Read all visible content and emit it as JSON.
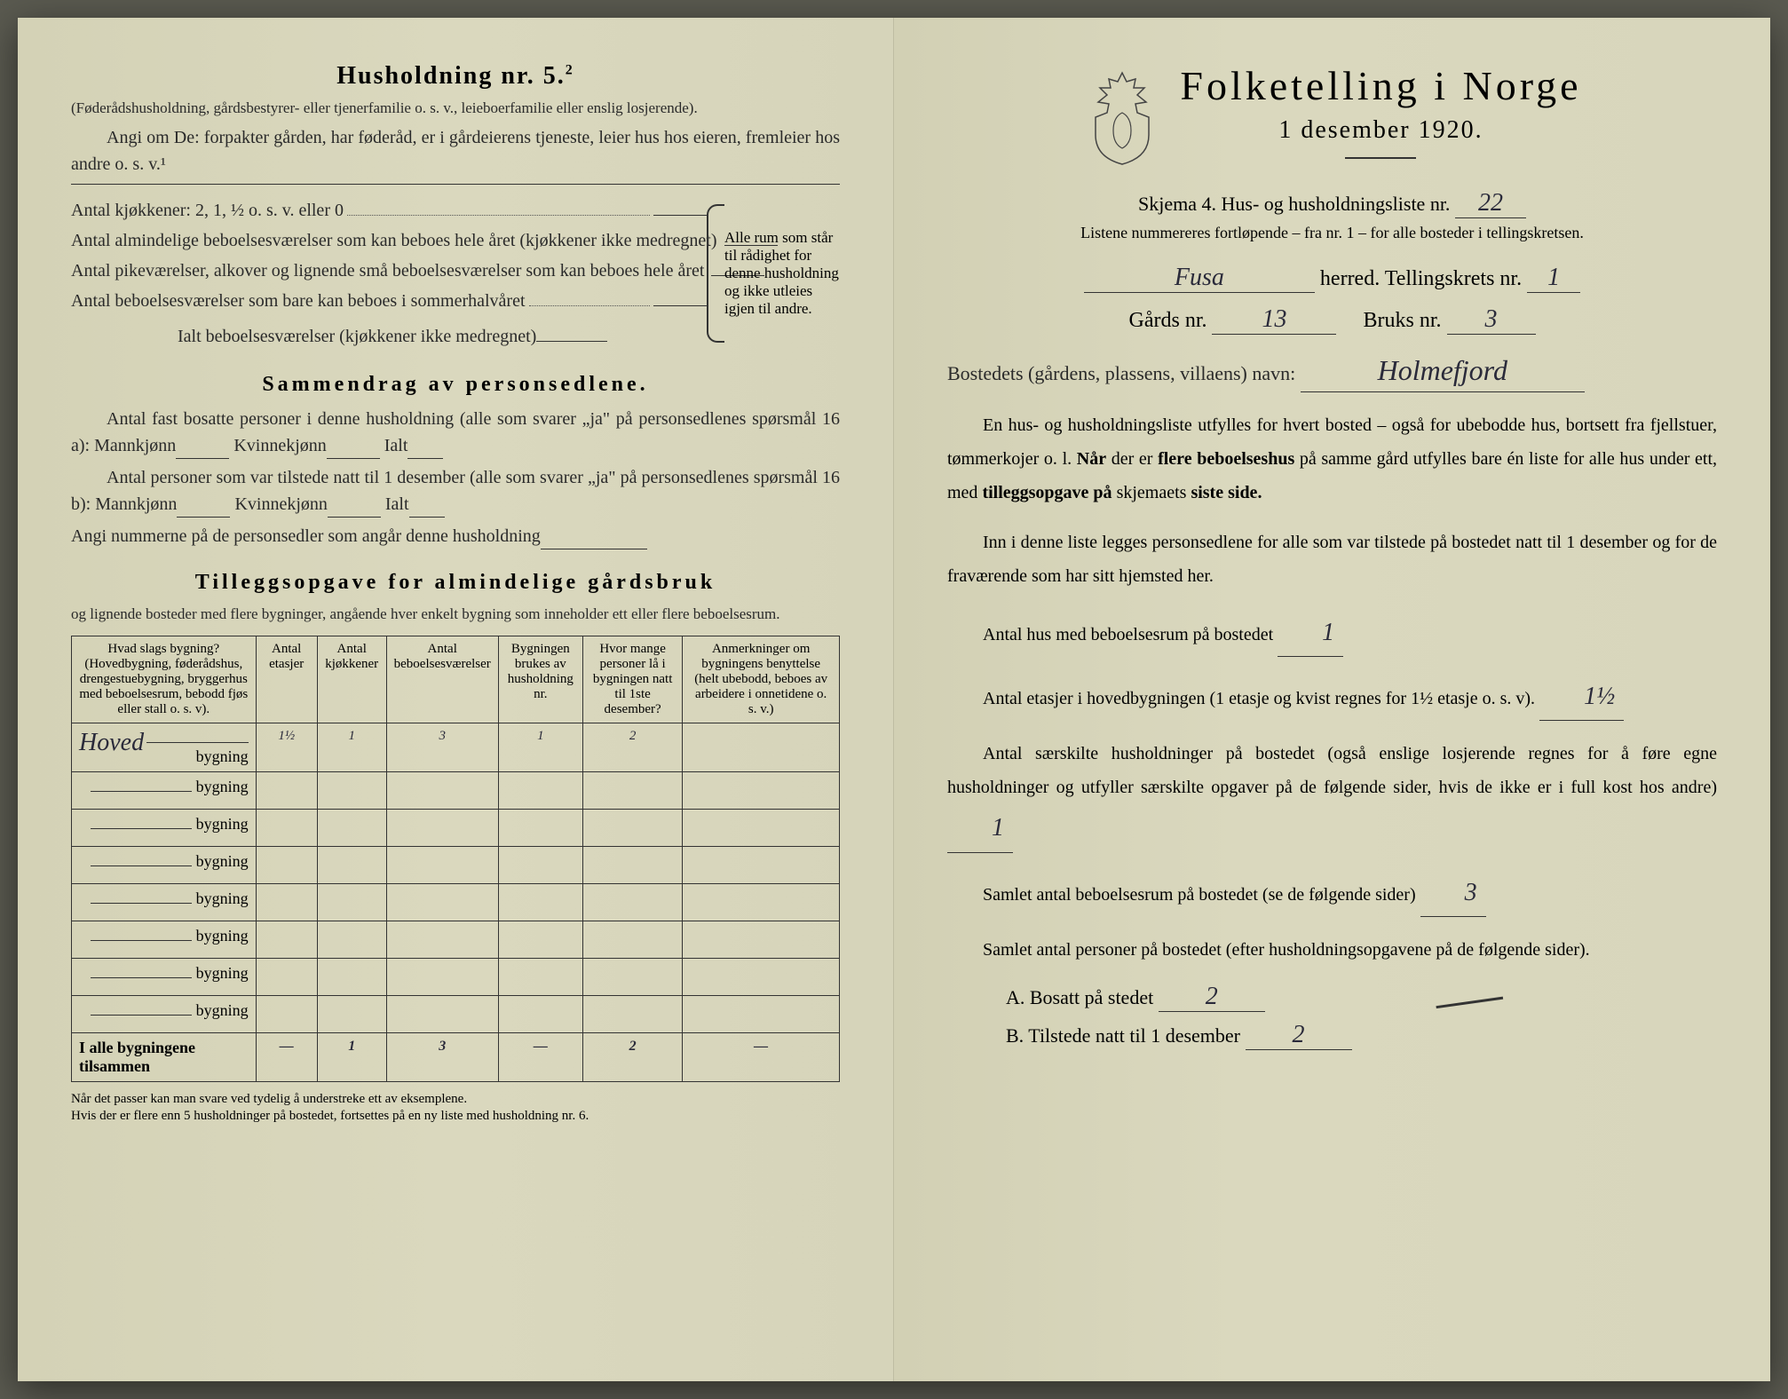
{
  "colors": {
    "paper": "#d8d6bc",
    "ink": "#2a2a2a",
    "handwriting": "#2a2a3a",
    "background": "#5a5a50"
  },
  "left": {
    "title": "Husholdning nr. 5.",
    "title_sup": "2",
    "intro1": "(Føderådshusholdning, gårdsbestyrer- eller tjenerfamilie o. s. v., leieboerfamilie eller enslig losjerende).",
    "intro2": "Angi om De: forpakter gården, har føderåd, er i gårdeierens tjeneste, leier hus hos eieren, fremleier hos andre o. s. v.¹",
    "brace_lines": [
      "Antal kjøkkener: 2, 1, ½ o. s. v. eller 0",
      "Antal almindelige beboelsesværelser som kan beboes hele året (kjøkkener ikke medregnet)",
      "Antal pikeværelser, alkover og lignende små beboelsesværelser som kan beboes hele året",
      "Antal beboelsesværelser som bare kan beboes i sommerhalvåret"
    ],
    "brace_total": "Ialt beboelsesværelser (kjøkkener ikke medregnet)",
    "brace_side": "Alle rum som står til rådighet for denne husholdning og ikke utleies igjen til andre.",
    "summary_title": "Sammendrag av personsedlene.",
    "summary_line1_a": "Antal fast bosatte personer i denne husholdning (alle som svarer „ja\" på personsedlenes spørsmål 16 a): Mannkjønn",
    "summary_kv": "Kvinnekjønn",
    "summary_ialt": "Ialt",
    "summary_line2_a": "Antal personer som var tilstede natt til 1 desember (alle som svarer „ja\" på personsedlenes spørsmål 16 b): Mannkjønn",
    "summary_line3": "Angi nummerne på de personsedler som angår denne husholdning",
    "tillegg_title": "Tilleggsopgave for almindelige gårdsbruk",
    "tillegg_sub": "og lignende bosteder med flere bygninger, angående hver enkelt bygning som inneholder ett eller flere beboelsesrum.",
    "table": {
      "headers": [
        "Hvad slags bygning?\n(Hovedbygning, føderådshus, drengestuebygning, bryggerhus med beboelsesrum, bebodd fjøs eller stall o. s. v).",
        "Antal etasjer",
        "Antal kjøkkener",
        "Antal beboelsesværelser",
        "Bygningen brukes av husholdning nr.",
        "Hvor mange personer lå i bygningen natt til 1ste desember?",
        "Anmerkninger om bygningens benyttelse (helt ubebodd, beboes av arbeidere i onnetidene o. s. v.)"
      ],
      "rows": [
        {
          "building_hand": "Hoved",
          "suffix": "bygning",
          "etasjer": "1½",
          "kjokken": "1",
          "vaerelser": "3",
          "hushold": "1",
          "personer": "2",
          "anm": ""
        },
        {
          "building_hand": "",
          "suffix": "bygning",
          "etasjer": "",
          "kjokken": "",
          "vaerelser": "",
          "hushold": "",
          "personer": "",
          "anm": ""
        },
        {
          "building_hand": "",
          "suffix": "bygning",
          "etasjer": "",
          "kjokken": "",
          "vaerelser": "",
          "hushold": "",
          "personer": "",
          "anm": ""
        },
        {
          "building_hand": "",
          "suffix": "bygning",
          "etasjer": "",
          "kjokken": "",
          "vaerelser": "",
          "hushold": "",
          "personer": "",
          "anm": ""
        },
        {
          "building_hand": "",
          "suffix": "bygning",
          "etasjer": "",
          "kjokken": "",
          "vaerelser": "",
          "hushold": "",
          "personer": "",
          "anm": ""
        },
        {
          "building_hand": "",
          "suffix": "bygning",
          "etasjer": "",
          "kjokken": "",
          "vaerelser": "",
          "hushold": "",
          "personer": "",
          "anm": ""
        },
        {
          "building_hand": "",
          "suffix": "bygning",
          "etasjer": "",
          "kjokken": "",
          "vaerelser": "",
          "hushold": "",
          "personer": "",
          "anm": ""
        },
        {
          "building_hand": "",
          "suffix": "bygning",
          "etasjer": "",
          "kjokken": "",
          "vaerelser": "",
          "hushold": "",
          "personer": "",
          "anm": ""
        }
      ],
      "footer_label": "I alle bygningene tilsammen",
      "footer": [
        "—",
        "1",
        "3",
        "—",
        "2",
        "—"
      ]
    },
    "footnote": "Når det passer kan man svare ved tydelig å understreke ett av eksemplene.\nHvis der er flere enn 5 husholdninger på bostedet, fortsettes på en ny liste med husholdning nr. 6."
  },
  "right": {
    "main_title": "Folketelling i Norge",
    "subtitle": "1 desember 1920.",
    "skjema": "Skjema 4.   Hus- og husholdningsliste nr.",
    "skjema_nr": "22",
    "listene": "Listene nummereres fortløpende – fra nr. 1 – for alle bosteder i tellingskretsen.",
    "herred_hand": "Fusa",
    "herred_label": "herred.   Tellingskrets nr.",
    "krets_nr": "1",
    "gard_label": "Gårds nr.",
    "gard_nr": "13",
    "bruk_label": "Bruks nr.",
    "bruk_nr": "3",
    "bosted_label": "Bostedets (gårdens, plassens, villaens) navn:",
    "bosted_hand": "Holmefjord",
    "para1": "En hus- og husholdningsliste utfylles for hvert bosted – også for ubebodde hus, bortsett fra fjellstuer, tømmerkojer o. l. Når der er flere beboelseshus på samme gård utfylles bare én liste for alle hus under ett, med tilleggsopgave på skjemaets siste side.",
    "para2": "Inn i denne liste legges personsedlene for alle som var tilstede på bostedet natt til 1 desember og for de fraværende som har sitt hjemsted her.",
    "q_hus": "Antal hus med beboelsesrum på bostedet",
    "q_hus_val": "1",
    "q_etasjer_a": "Antal etasjer i hovedbygningen (1 etasje og kvist regnes for 1½ etasje o. s. v).",
    "q_etasjer_val": "1½",
    "q_hushold": "Antal særskilte husholdninger på bostedet (også enslige losjerende regnes for å føre egne husholdninger og utfyller særskilte opgaver på de følgende sider, hvis de ikke er i full kost hos andre)",
    "q_hushold_val": "1",
    "q_samlet_rum": "Samlet antal beboelsesrum på bostedet (se de følgende sider)",
    "q_samlet_rum_val": "3",
    "q_samlet_pers": "Samlet antal personer på bostedet (efter husholdningsopgavene på de følgende sider).",
    "ab_a_label": "A.  Bosatt på stedet",
    "ab_a_val": "2",
    "ab_b_label": "B.  Tilstede natt til 1 desember",
    "ab_b_val": "2"
  }
}
